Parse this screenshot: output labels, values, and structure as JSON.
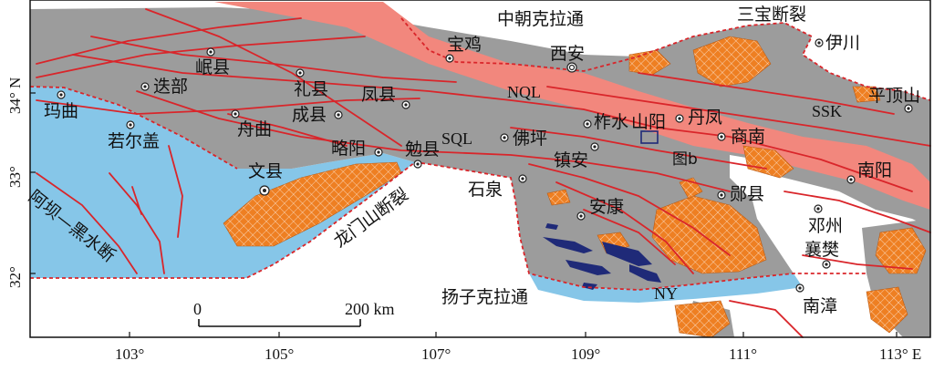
{
  "blocks": {
    "north_craton": "中朝克拉通",
    "south_craton": "扬子克拉通"
  },
  "faults": {
    "sanbao": "三宝断裂",
    "longmenshan": "龙门山断裂",
    "abahei": "阿坝—黑水断"
  },
  "zones": {
    "nql": "NQL",
    "sql": "SQL",
    "ssk": "SSK",
    "ny": "NY"
  },
  "cities": {
    "baoji": "宝鸡",
    "xian": "西安",
    "yichuan": "伊川",
    "pingdingshan": "平顶山",
    "minxian": "岷县",
    "diebu": "迭部",
    "maqu": "玛曲",
    "lixian": "礼县",
    "fengxian": "凤县",
    "chengxian": "成县",
    "zhouqu": "舟曲",
    "zoige": "若尔盖",
    "lueyang": "略阳",
    "mianxian": "勉县",
    "foping": "佛坪",
    "zhashui": "柞水",
    "shanyang": "山阳",
    "danfeng": "丹凤",
    "shangnan": "商南",
    "zhenan": "镇安",
    "wenxian": "文县",
    "shiquan": "石泉",
    "ankang": "安康",
    "yunxian": "郧县",
    "nanyang": "南阳",
    "dengzhou": "邓州",
    "xiangfan": "襄樊",
    "nanzhang": "南漳"
  },
  "annotations": {
    "fig_b": "图b"
  },
  "scale_bar": {
    "start": "0",
    "end": "200 km"
  },
  "axes": {
    "x_ticks": [
      "103°",
      "105°",
      "107°",
      "109°",
      "111°",
      "113° E"
    ],
    "y_ticks": [
      "34° N",
      "33°",
      "32°"
    ]
  },
  "colors": {
    "orogen": "#9c9c9c",
    "north_belt": "#f2877d",
    "yangtze": "#86c6e8",
    "granite": "#ee7f22",
    "ophiolite": "#1f2a78",
    "fault": "#d9252a"
  }
}
